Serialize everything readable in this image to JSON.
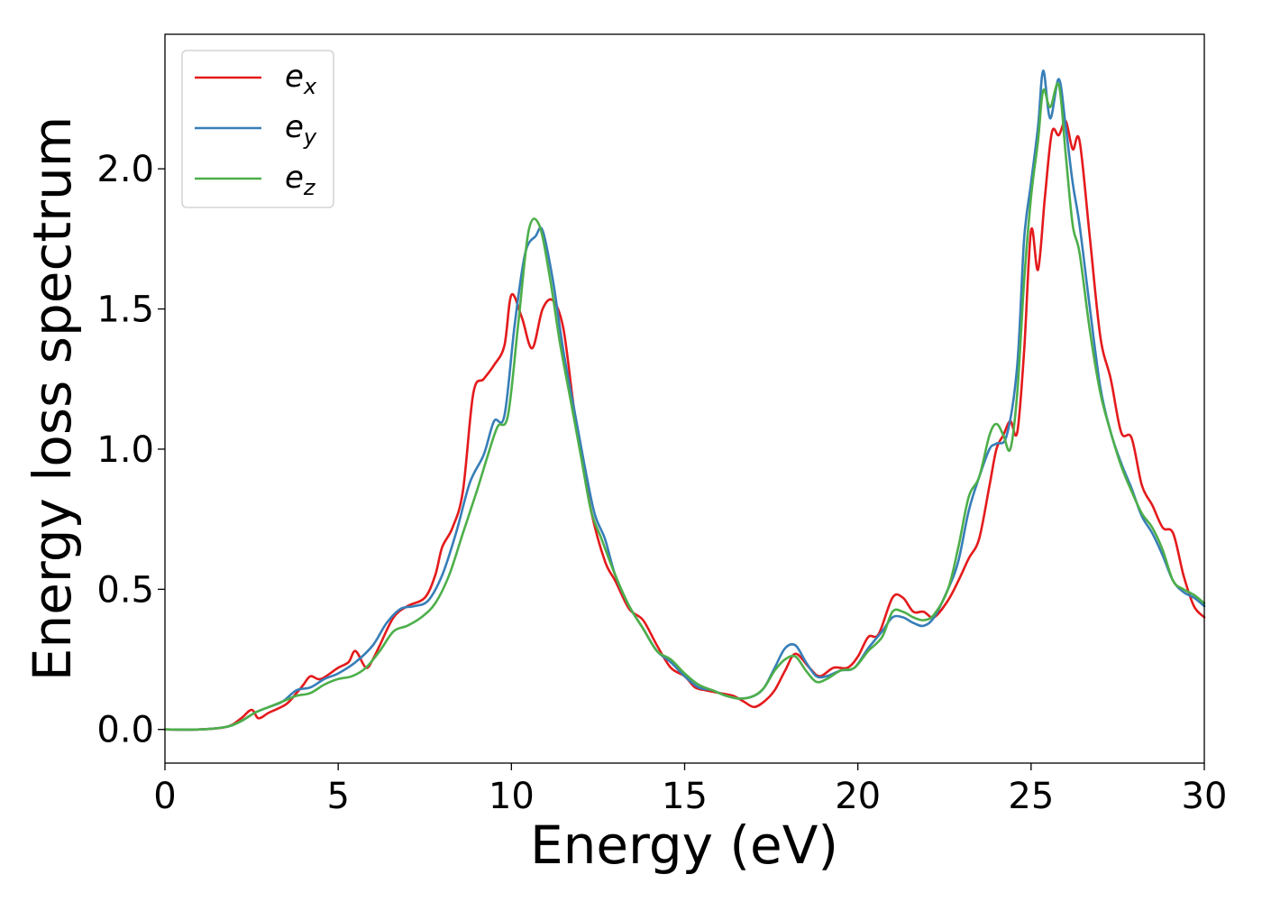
{
  "chart_data": {
    "type": "line",
    "title": "",
    "xlabel": "Energy (eV)",
    "ylabel": "Energy loss spectrum",
    "xlim": [
      0,
      30
    ],
    "ylim": [
      -0.12,
      2.48
    ],
    "xticks": [
      0,
      5,
      10,
      15,
      20,
      25,
      30
    ],
    "xtick_labels": [
      "0",
      "5",
      "10",
      "15",
      "20",
      "25",
      "30"
    ],
    "yticks": [
      0.0,
      0.5,
      1.0,
      1.5,
      2.0
    ],
    "ytick_labels": [
      "0.0",
      "0.5",
      "1.0",
      "1.5",
      "2.0"
    ],
    "grid": false,
    "legend_position": "top-left",
    "series": [
      {
        "name": "e",
        "subscript": "x",
        "color": "#e41a1c",
        "x": [
          0,
          1,
          1.8,
          2.2,
          2.5,
          2.7,
          3.0,
          3.5,
          3.8,
          4.0,
          4.2,
          4.5,
          5.0,
          5.3,
          5.5,
          5.8,
          6.0,
          6.2,
          6.6,
          7.0,
          7.5,
          7.8,
          8.0,
          8.3,
          8.6,
          8.9,
          9.2,
          9.5,
          9.8,
          10.0,
          10.3,
          10.6,
          10.9,
          11.2,
          11.5,
          11.8,
          12.0,
          12.3,
          12.7,
          13.0,
          13.4,
          13.8,
          14.2,
          14.6,
          15.0,
          15.3,
          15.6,
          16.0,
          16.4,
          16.7,
          17.0,
          17.3,
          17.6,
          17.9,
          18.2,
          18.6,
          18.9,
          19.3,
          19.7,
          20.0,
          20.3,
          20.6,
          21.0,
          21.3,
          21.6,
          21.9,
          22.2,
          22.6,
          22.9,
          23.2,
          23.5,
          23.8,
          24.0,
          24.2,
          24.4,
          24.6,
          24.8,
          25.0,
          25.2,
          25.4,
          25.6,
          25.8,
          26.0,
          26.2,
          26.4,
          26.7,
          27.0,
          27.3,
          27.6,
          27.9,
          28.2,
          28.5,
          28.8,
          29.1,
          29.4,
          29.7,
          30.0
        ],
        "y": [
          0.0,
          0.0,
          0.01,
          0.04,
          0.07,
          0.04,
          0.06,
          0.09,
          0.13,
          0.16,
          0.19,
          0.18,
          0.22,
          0.24,
          0.28,
          0.22,
          0.25,
          0.3,
          0.4,
          0.44,
          0.47,
          0.55,
          0.65,
          0.72,
          0.85,
          1.2,
          1.25,
          1.3,
          1.37,
          1.55,
          1.47,
          1.36,
          1.5,
          1.53,
          1.43,
          1.15,
          1.0,
          0.78,
          0.6,
          0.53,
          0.43,
          0.39,
          0.3,
          0.22,
          0.19,
          0.15,
          0.14,
          0.13,
          0.12,
          0.1,
          0.08,
          0.1,
          0.14,
          0.21,
          0.27,
          0.22,
          0.19,
          0.22,
          0.22,
          0.26,
          0.33,
          0.34,
          0.47,
          0.47,
          0.42,
          0.42,
          0.4,
          0.46,
          0.53,
          0.61,
          0.68,
          0.87,
          1.0,
          1.05,
          1.1,
          1.06,
          1.35,
          1.78,
          1.64,
          1.9,
          2.13,
          2.12,
          2.17,
          2.07,
          2.1,
          1.75,
          1.4,
          1.25,
          1.06,
          1.04,
          0.87,
          0.8,
          0.72,
          0.7,
          0.55,
          0.44,
          0.4
        ]
      },
      {
        "name": "e",
        "subscript": "y",
        "color": "#377eb8",
        "x": [
          0,
          1,
          1.8,
          2.2,
          2.6,
          3.0,
          3.4,
          3.8,
          4.2,
          4.6,
          5.0,
          5.5,
          6.0,
          6.4,
          6.8,
          7.2,
          7.6,
          8.0,
          8.4,
          8.8,
          9.2,
          9.5,
          9.8,
          10.1,
          10.4,
          10.7,
          10.9,
          11.2,
          11.5,
          11.8,
          12.1,
          12.4,
          12.7,
          13.0,
          13.4,
          13.8,
          14.2,
          14.6,
          15.0,
          15.4,
          15.8,
          16.2,
          16.6,
          17.0,
          17.3,
          17.6,
          17.9,
          18.2,
          18.5,
          18.8,
          19.1,
          19.5,
          19.9,
          20.3,
          20.7,
          21.0,
          21.3,
          21.6,
          21.9,
          22.2,
          22.6,
          22.9,
          23.2,
          23.5,
          23.8,
          24.0,
          24.3,
          24.6,
          24.8,
          25.0,
          25.2,
          25.35,
          25.55,
          25.8,
          26.0,
          26.2,
          26.4,
          26.7,
          27.0,
          27.3,
          27.6,
          27.9,
          28.2,
          28.5,
          28.8,
          29.1,
          29.4,
          29.7,
          30.0
        ],
        "y": [
          0.0,
          0.0,
          0.01,
          0.03,
          0.06,
          0.08,
          0.1,
          0.14,
          0.15,
          0.18,
          0.2,
          0.24,
          0.3,
          0.38,
          0.43,
          0.44,
          0.46,
          0.55,
          0.7,
          0.88,
          0.98,
          1.1,
          1.12,
          1.45,
          1.7,
          1.76,
          1.78,
          1.6,
          1.35,
          1.15,
          0.95,
          0.77,
          0.68,
          0.55,
          0.44,
          0.36,
          0.28,
          0.24,
          0.19,
          0.15,
          0.14,
          0.12,
          0.11,
          0.12,
          0.15,
          0.22,
          0.29,
          0.3,
          0.24,
          0.19,
          0.19,
          0.21,
          0.22,
          0.29,
          0.35,
          0.4,
          0.4,
          0.38,
          0.37,
          0.4,
          0.5,
          0.6,
          0.78,
          0.9,
          1.0,
          1.02,
          1.05,
          1.3,
          1.75,
          1.95,
          2.15,
          2.35,
          2.18,
          2.32,
          2.15,
          1.95,
          1.8,
          1.5,
          1.22,
          1.06,
          0.95,
          0.86,
          0.76,
          0.7,
          0.62,
          0.53,
          0.49,
          0.47,
          0.44
        ]
      },
      {
        "name": "e",
        "subscript": "z",
        "color": "#4daf4a",
        "x": [
          0,
          1,
          1.8,
          2.2,
          2.6,
          3.0,
          3.4,
          3.8,
          4.2,
          4.6,
          5.0,
          5.4,
          5.8,
          6.2,
          6.6,
          7.0,
          7.4,
          7.8,
          8.2,
          8.6,
          9.0,
          9.3,
          9.6,
          9.9,
          10.2,
          10.5,
          10.8,
          11.1,
          11.4,
          11.7,
          12.0,
          12.3,
          12.6,
          13.0,
          13.4,
          13.8,
          14.2,
          14.6,
          15.0,
          15.4,
          15.8,
          16.2,
          16.6,
          17.0,
          17.3,
          17.6,
          17.9,
          18.2,
          18.5,
          18.8,
          19.1,
          19.5,
          19.9,
          20.3,
          20.7,
          21.0,
          21.3,
          21.6,
          21.9,
          22.2,
          22.6,
          22.9,
          23.2,
          23.5,
          23.8,
          24.0,
          24.2,
          24.4,
          24.6,
          24.8,
          25.0,
          25.2,
          25.35,
          25.55,
          25.8,
          26.0,
          26.2,
          26.4,
          26.7,
          27.0,
          27.3,
          27.6,
          27.9,
          28.2,
          28.5,
          28.8,
          29.1,
          29.4,
          29.7,
          30.0
        ],
        "y": [
          0.0,
          0.0,
          0.01,
          0.03,
          0.06,
          0.08,
          0.1,
          0.12,
          0.13,
          0.16,
          0.18,
          0.19,
          0.22,
          0.28,
          0.35,
          0.37,
          0.4,
          0.45,
          0.55,
          0.7,
          0.85,
          0.97,
          1.08,
          1.12,
          1.45,
          1.78,
          1.8,
          1.62,
          1.38,
          1.18,
          0.98,
          0.78,
          0.68,
          0.55,
          0.44,
          0.36,
          0.28,
          0.25,
          0.2,
          0.16,
          0.14,
          0.12,
          0.11,
          0.12,
          0.15,
          0.21,
          0.25,
          0.26,
          0.21,
          0.17,
          0.18,
          0.21,
          0.22,
          0.28,
          0.33,
          0.42,
          0.42,
          0.4,
          0.39,
          0.41,
          0.5,
          0.65,
          0.83,
          0.9,
          1.05,
          1.09,
          1.05,
          1.0,
          1.2,
          1.6,
          1.9,
          2.1,
          2.28,
          2.22,
          2.3,
          2.05,
          1.8,
          1.7,
          1.42,
          1.2,
          1.06,
          0.94,
          0.85,
          0.77,
          0.72,
          0.64,
          0.53,
          0.5,
          0.48,
          0.45
        ]
      }
    ]
  }
}
